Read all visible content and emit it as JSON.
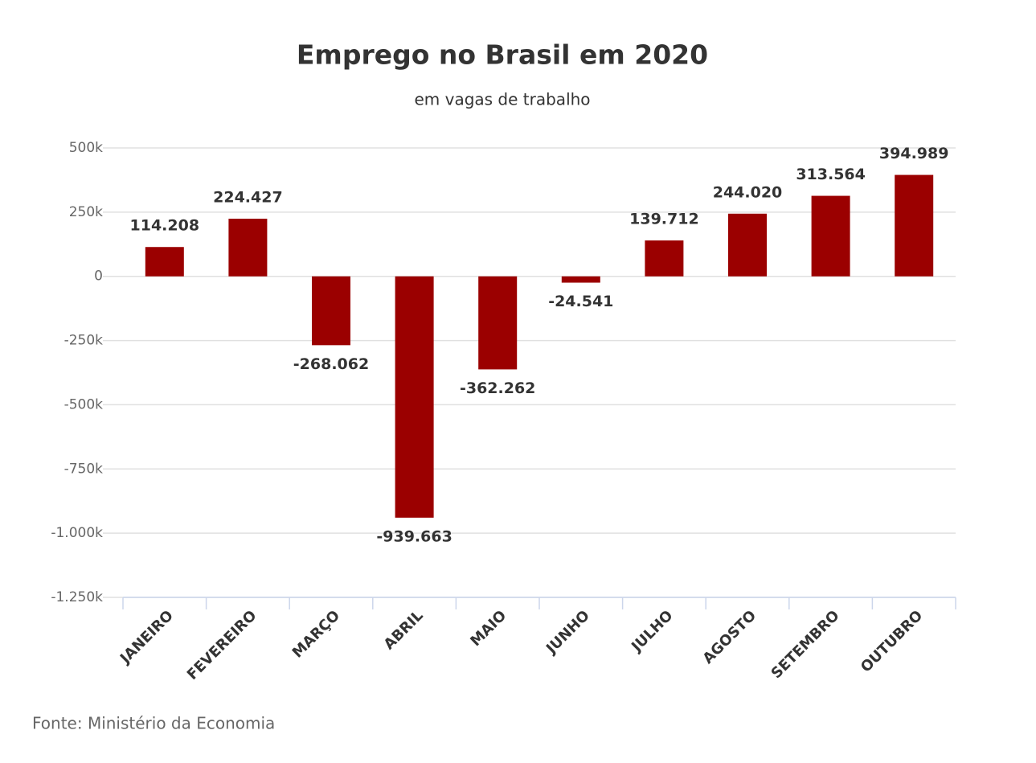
{
  "chart_data": {
    "type": "bar",
    "title": "Emprego no Brasil em 2020",
    "subtitle": "em vagas de trabalho",
    "source": "Fonte: Ministério da Economia",
    "categories": [
      "JANEIRO",
      "FEVEREIRO",
      "MARÇO",
      "ABRIL",
      "MAIO",
      "JUNHO",
      "JULHO",
      "AGOSTO",
      "SETEMBRO",
      "OUTUBRO"
    ],
    "values": [
      114208,
      224427,
      -268062,
      -939663,
      -362262,
      -24541,
      139712,
      244020,
      313564,
      394989
    ],
    "value_labels": [
      "114.208",
      "224.427",
      "-268.062",
      "-939.663",
      "-362.262",
      "-24.541",
      "139.712",
      "244.020",
      "313.564",
      "394.989"
    ],
    "color": "#9b0000",
    "ylim": [
      -1250000,
      500000
    ],
    "yticks": [
      {
        "value": 500000,
        "label": "500k"
      },
      {
        "value": 250000,
        "label": "250k"
      },
      0,
      {
        "value": -250000,
        "label": "-250k"
      },
      {
        "value": -500000,
        "label": "-500k"
      },
      {
        "value": -750000,
        "label": "-750k"
      },
      {
        "value": -1000000,
        "label": "-1.000k"
      },
      {
        "value": -1250000,
        "label": "-1.250k"
      }
    ],
    "grid": true
  }
}
